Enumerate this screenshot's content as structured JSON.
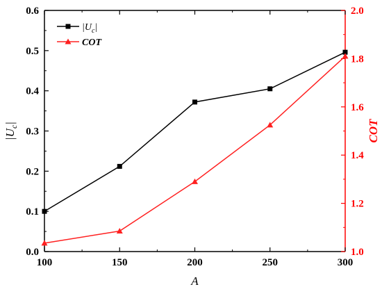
{
  "chart_data": {
    "type": "line",
    "x": [
      100,
      150,
      200,
      250,
      300
    ],
    "xlabel": "A",
    "xlim": [
      100,
      300
    ],
    "xticks": [
      "100",
      "150",
      "200",
      "250",
      "300"
    ],
    "left_axis": {
      "label": "|U_c|",
      "label_display": "|Uc|",
      "ylim": [
        0,
        0.6
      ],
      "ticks": [
        "0.0",
        "0.1",
        "0.2",
        "0.3",
        "0.4",
        "0.5",
        "0.6"
      ],
      "color": "#000000"
    },
    "right_axis": {
      "label": "COT",
      "ylim": [
        1.0,
        2.0
      ],
      "ticks": [
        "1.0",
        "1.2",
        "1.4",
        "1.6",
        "1.8",
        "2.0"
      ],
      "color": "#ff0000"
    },
    "series": [
      {
        "name": "|U_c|",
        "axis": "left",
        "color": "#000000",
        "marker": "square",
        "values": [
          0.1,
          0.212,
          0.372,
          0.405,
          0.496
        ]
      },
      {
        "name": "COT",
        "axis": "right",
        "color": "#ff2020",
        "marker": "triangle",
        "values": [
          1.035,
          1.085,
          1.29,
          1.525,
          1.81
        ]
      }
    ],
    "legend": {
      "position": "top-left",
      "items": [
        {
          "label_main": "|U",
          "label_sub": "c",
          "label_end": "|",
          "color": "#000000",
          "marker": "square"
        },
        {
          "label_main": "COT",
          "label_sub": "",
          "label_end": "",
          "color": "#ff2020",
          "marker": "triangle"
        }
      ]
    },
    "grid": false
  }
}
